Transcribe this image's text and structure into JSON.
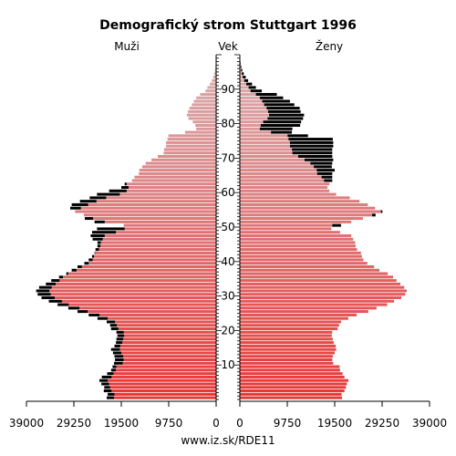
{
  "chart_data": {
    "type": "bar",
    "orientation": "horizontal",
    "title": "Demografický strom Stuttgart 1996",
    "left_label": "Muži",
    "center_label": "Vek",
    "right_label": "Ženy",
    "source": "www.iz.sk/RDE11",
    "x_ticks_left": [
      "39000",
      "29250",
      "19500",
      "9750",
      "0"
    ],
    "x_ticks_right": [
      "0",
      "9750",
      "19500",
      "29250",
      "39000"
    ],
    "x_tick_values": [
      0,
      9750,
      19500,
      29250,
      39000
    ],
    "xlim": [
      0,
      39000
    ],
    "ylim": [
      0,
      99
    ],
    "age_ticks": [
      10,
      20,
      30,
      40,
      50,
      60,
      70,
      80,
      90
    ],
    "ages": [
      0,
      1,
      2,
      3,
      4,
      5,
      6,
      7,
      8,
      9,
      10,
      11,
      12,
      13,
      14,
      15,
      16,
      17,
      18,
      19,
      20,
      21,
      22,
      23,
      24,
      25,
      26,
      27,
      28,
      29,
      30,
      31,
      32,
      33,
      34,
      35,
      36,
      37,
      38,
      39,
      40,
      41,
      42,
      43,
      44,
      45,
      46,
      47,
      48,
      49,
      50,
      51,
      52,
      53,
      54,
      55,
      56,
      57,
      58,
      59,
      60,
      61,
      62,
      63,
      64,
      65,
      66,
      67,
      68,
      69,
      70,
      71,
      72,
      73,
      74,
      75,
      76,
      77,
      78,
      79,
      80,
      81,
      82,
      83,
      84,
      85,
      86,
      87,
      88,
      89,
      90,
      91,
      92,
      93,
      94,
      95,
      96,
      97,
      98,
      99
    ],
    "series": [
      {
        "name": "Muži",
        "color_gradient": [
          "#e83535",
          "#d9a6a8"
        ],
        "excess_color": "#000000",
        "values": [
          22500,
          22300,
          23100,
          23000,
          23600,
          24000,
          23500,
          22400,
          21600,
          21300,
          21000,
          20800,
          20900,
          21200,
          21600,
          20900,
          20600,
          20500,
          20300,
          20500,
          21600,
          21800,
          22500,
          24400,
          26200,
          28500,
          30400,
          32600,
          34400,
          35900,
          36700,
          37000,
          36400,
          35000,
          33900,
          32300,
          30800,
          29700,
          28500,
          27100,
          26200,
          25500,
          25000,
          24800,
          24400,
          24400,
          25400,
          25800,
          25500,
          24500,
          19000,
          25000,
          27000,
          27200,
          29000,
          30000,
          29700,
          28000,
          26000,
          24500,
          22000,
          19500,
          18800,
          17300,
          16800,
          15900,
          15800,
          15200,
          14500,
          13300,
          12000,
          10800,
          10700,
          10300,
          10300,
          10000,
          9800,
          6400,
          4100,
          4300,
          4800,
          5700,
          6000,
          5800,
          5500,
          5000,
          4600,
          4100,
          3300,
          2200,
          1800,
          1300,
          900,
          600,
          400,
          250,
          150,
          100,
          60,
          40
        ],
        "other_values": [
          21000,
          20900,
          21500,
          21800,
          22000,
          22300,
          21500,
          21100,
          20600,
          20500,
          19200,
          19000,
          19100,
          19500,
          19800,
          19700,
          19300,
          19100,
          18900,
          19000,
          20100,
          20400,
          20800,
          22300,
          24000,
          26400,
          28100,
          30300,
          31700,
          33200,
          34000,
          34300,
          33800,
          33000,
          32200,
          31500,
          30400,
          28700,
          27600,
          26200,
          25400,
          25100,
          24900,
          24100,
          23800,
          23700,
          23300,
          22900,
          20600,
          18800,
          20800,
          22900,
          25300,
          27900,
          29300,
          27800,
          26300,
          24600,
          22600,
          19800,
          18400,
          18000,
          18400,
          19000,
          19000,
          19000,
          19500,
          18900,
          19000,
          19200,
          19000,
          19000,
          19000,
          19200,
          19200,
          19100,
          14000,
          10700,
          10800,
          12400,
          12600,
          13000,
          13200,
          12500,
          12300,
          11200,
          10300,
          8900,
          7600,
          4500,
          3300,
          2500,
          1700,
          1200,
          800,
          500,
          300,
          150,
          80,
          40
        ]
      },
      {
        "name": "Ženy",
        "color_gradient": [
          "#e83535",
          "#d9a6a8"
        ],
        "excess_color": "#000000",
        "values": [
          21000,
          20900,
          21500,
          21800,
          22000,
          22300,
          21500,
          21100,
          20600,
          20500,
          19200,
          19000,
          19100,
          19500,
          19800,
          19700,
          19300,
          19100,
          18900,
          19000,
          20100,
          20400,
          20800,
          22300,
          24000,
          26400,
          28100,
          30300,
          31700,
          33200,
          34000,
          34300,
          33800,
          33000,
          32200,
          31500,
          30400,
          28700,
          27600,
          26200,
          25400,
          25100,
          24900,
          24100,
          23800,
          23700,
          23300,
          22900,
          20600,
          18800,
          20800,
          22900,
          25300,
          27900,
          29300,
          27800,
          26300,
          24600,
          22600,
          19800,
          18400,
          18000,
          18400,
          19000,
          19000,
          19000,
          19500,
          18900,
          19000,
          19200,
          19000,
          19000,
          19000,
          19200,
          19200,
          19100,
          14000,
          10700,
          10800,
          12400,
          12600,
          13000,
          13200,
          12500,
          12300,
          11200,
          10300,
          8900,
          7600,
          4500,
          3300,
          2500,
          1700,
          1200,
          800,
          500,
          300,
          150,
          80,
          40
        ],
        "other_values": [
          22500,
          22300,
          23100,
          23000,
          23600,
          24000,
          23500,
          22400,
          21600,
          21300,
          21000,
          20800,
          20900,
          21200,
          21600,
          20900,
          20600,
          20500,
          20300,
          20500,
          21600,
          21800,
          22500,
          24400,
          26200,
          28500,
          30400,
          32600,
          34400,
          35900,
          36700,
          37000,
          36400,
          35000,
          33900,
          32300,
          30800,
          29700,
          28500,
          27100,
          26200,
          25500,
          25000,
          24800,
          24400,
          24400,
          25400,
          25800,
          25500,
          24500,
          19000,
          25000,
          27000,
          27200,
          29000,
          30000,
          29700,
          28000,
          26000,
          24500,
          22000,
          19500,
          18800,
          17300,
          16800,
          15900,
          15800,
          15200,
          14500,
          13300,
          12000,
          10800,
          10700,
          10300,
          10300,
          10000,
          9800,
          6400,
          4100,
          4300,
          4800,
          5700,
          6000,
          5800,
          5500,
          5000,
          4600,
          4100,
          3300,
          2200,
          1800,
          1300,
          900,
          600,
          400,
          250,
          150,
          100,
          60,
          40
        ]
      }
    ]
  }
}
